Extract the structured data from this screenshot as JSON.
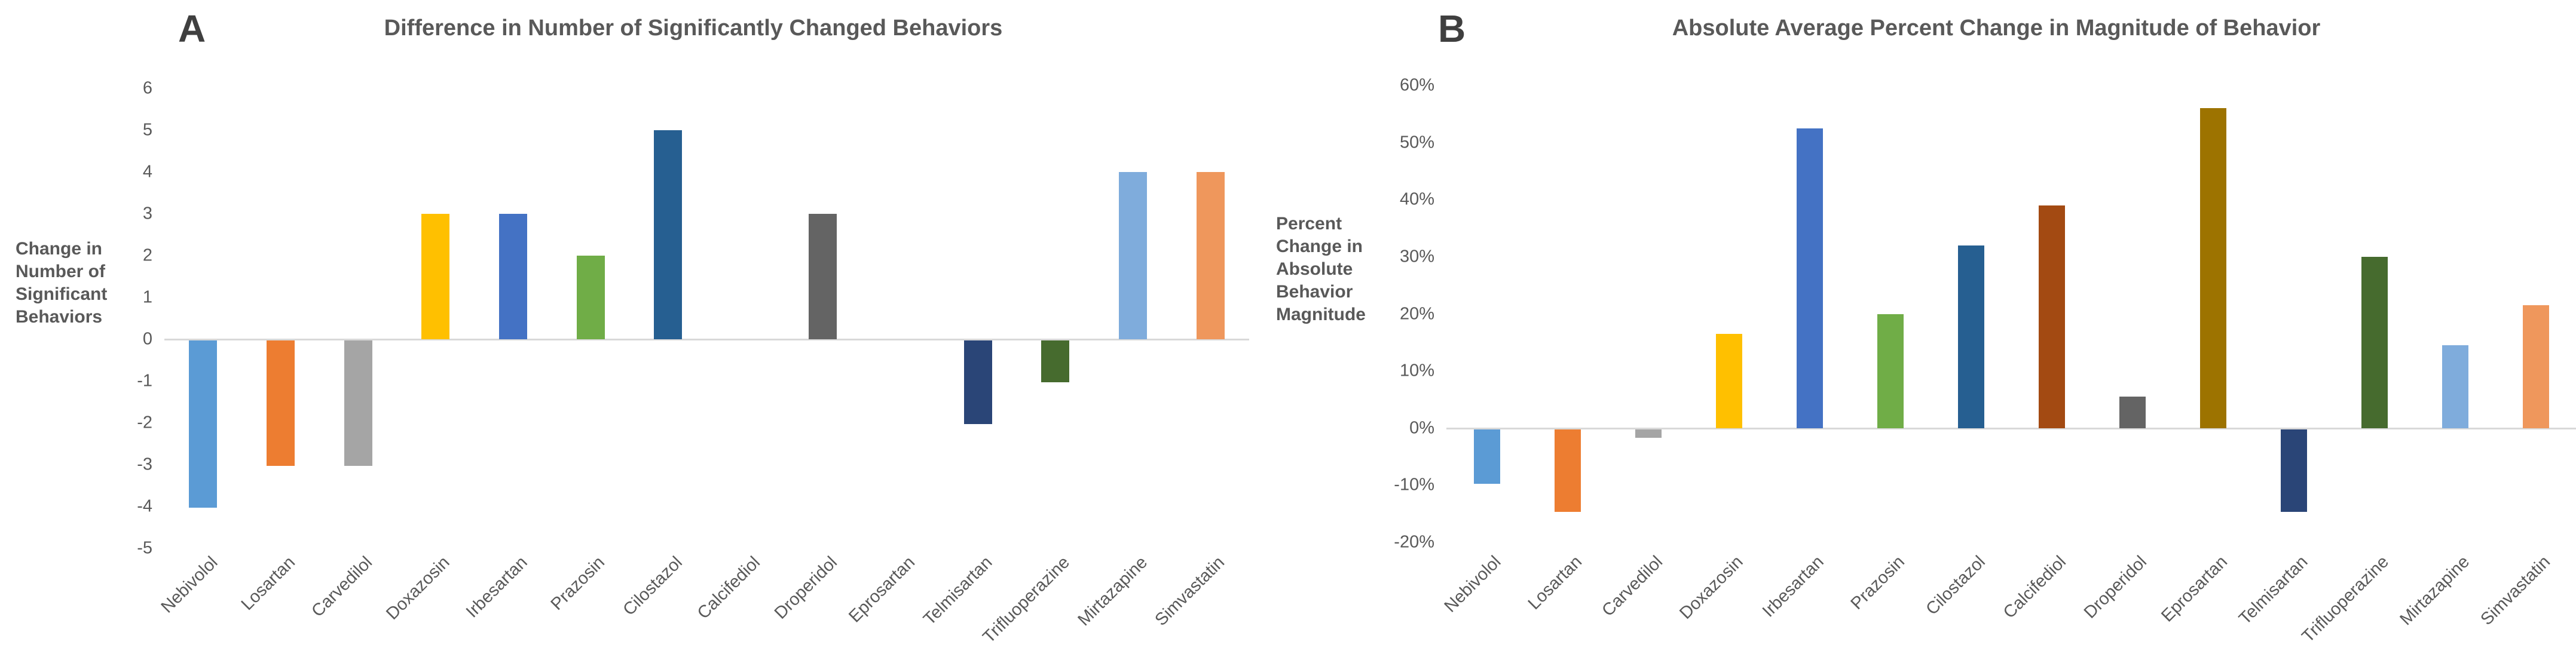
{
  "style": {
    "background_color": "#ffffff",
    "text_color": "#595959",
    "panel_letter_color": "#3f3f3f",
    "zero_line_color": "#d9d9d9"
  },
  "panels": [
    {
      "letter": "A"
    },
    {
      "letter": "B"
    }
  ],
  "chart_data": [
    {
      "type": "bar",
      "panel": "A",
      "title": "Difference in Number of Significantly Changed Behaviors",
      "ylabel": "Change in Number of Significant Behaviors",
      "ylabel_lines": [
        "Change in",
        "Number of",
        "Significant",
        "Behaviors"
      ],
      "xlabel": "",
      "categories": [
        "Nebivolol",
        "Losartan",
        "Carvedilol",
        "Doxazosin",
        "Irbesartan",
        "Prazosin",
        "Cilostazol",
        "Calcifediol",
        "Droperidol",
        "Eprosartan",
        "Telmisartan",
        "Trifluoperazine",
        "Mirtazapine",
        "Simvastatin"
      ],
      "values": [
        -4,
        -3,
        -3,
        3,
        3,
        2,
        5,
        0,
        3,
        0,
        -2,
        -1,
        4,
        4
      ],
      "bar_colors": [
        "#5B9BD5",
        "#ED7D31",
        "#A5A5A5",
        "#FFC000",
        "#4472C4",
        "#70AD47",
        "#265F91",
        "#A34A12",
        "#646464",
        "#9D7300",
        "#2A4577",
        "#466B2E",
        "#7FACDC",
        "#EF975C"
      ],
      "ylim": [
        -5,
        6
      ],
      "ytick_step": 1,
      "ytick_values": [
        6,
        5,
        4,
        3,
        2,
        1,
        0,
        -1,
        -2,
        -3,
        -4,
        -5
      ],
      "ytick_labels": [
        "6",
        "5",
        "4",
        "3",
        "2",
        "1",
        "0",
        "-1",
        "-2",
        "-3",
        "-4",
        "-5"
      ],
      "grid": false,
      "legend": "none"
    },
    {
      "type": "bar",
      "panel": "B",
      "title": "Absolute Average Percent Change in Magnitude of Behavior",
      "ylabel": "Percent Change in Absolute Behavior Magnitude",
      "ylabel_lines": [
        "Percent",
        "Change in",
        "Absolute",
        "Behavior",
        "Magnitude"
      ],
      "xlabel": "",
      "categories": [
        "Nebivolol",
        "Losartan",
        "Carvedilol",
        "Doxazosin",
        "Irbesartan",
        "Prazosin",
        "Cilostazol",
        "Calcifediol",
        "Droperidol",
        "Eprosartan",
        "Telmisartan",
        "Trifluoperazine",
        "Mirtazapine",
        "Simvastatin"
      ],
      "values": [
        -9.5,
        -14.5,
        -1.5,
        16.5,
        52.5,
        20,
        32,
        39,
        5.5,
        56,
        -14.5,
        30,
        14.5,
        21.5
      ],
      "unit": "%",
      "bar_colors": [
        "#5B9BD5",
        "#ED7D31",
        "#A5A5A5",
        "#FFC000",
        "#4472C4",
        "#70AD47",
        "#265F91",
        "#A34A12",
        "#646464",
        "#9D7300",
        "#2A4577",
        "#466B2E",
        "#7FACDC",
        "#EF975C"
      ],
      "ylim": [
        -20,
        60
      ],
      "ytick_step": 10,
      "ytick_values": [
        60,
        50,
        40,
        30,
        20,
        10,
        0,
        -10,
        -20
      ],
      "ytick_labels": [
        "60%",
        "50%",
        "40%",
        "30%",
        "20%",
        "10%",
        "0%",
        "-10%",
        "-20%"
      ],
      "grid": false,
      "legend": "none"
    }
  ]
}
